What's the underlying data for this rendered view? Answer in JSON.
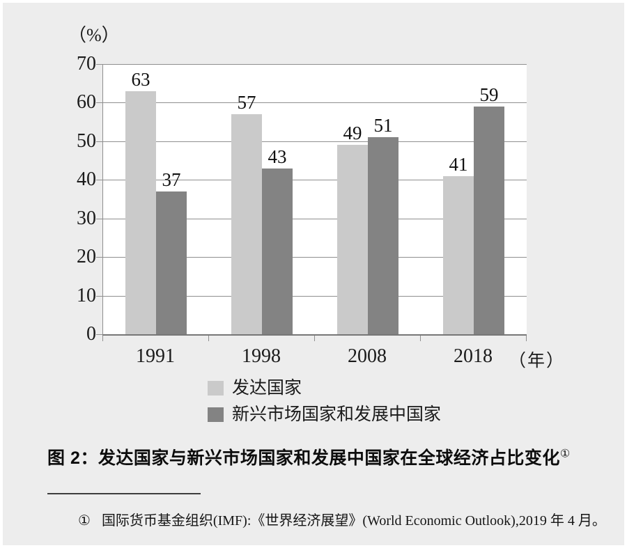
{
  "chart_data": {
    "type": "bar",
    "title": "",
    "categories": [
      "1991",
      "1998",
      "2008",
      "2018"
    ],
    "series": [
      {
        "name": "发达国家",
        "color": "#cacaca",
        "values": [
          63,
          57,
          49,
          41
        ]
      },
      {
        "name": "新兴市场国家和发展中国家",
        "color": "#838383",
        "values": [
          37,
          43,
          51,
          59
        ]
      }
    ],
    "ylim": [
      0,
      70
    ],
    "yticks": [
      0,
      10,
      20,
      30,
      40,
      50,
      60,
      70
    ],
    "unit_y": "（%）",
    "unit_x": "（年）",
    "grid": true,
    "value_labels": true,
    "legend_position": "bottom"
  },
  "caption": {
    "text": "图 2：发达国家与新兴市场国家和发展中国家在全球经济占比变化",
    "footnote_marker": "①"
  },
  "footnote": {
    "marker": "①",
    "text": "国际货币基金组织(IMF):《世界经济展望》(World Economic Outlook),2019 年 4 月。"
  },
  "colors": {
    "page_background": "#ededed",
    "plot_background": "#ffffff",
    "grid": "#8f8f8f",
    "axis": "#777777",
    "text": "#1a1a1a"
  }
}
